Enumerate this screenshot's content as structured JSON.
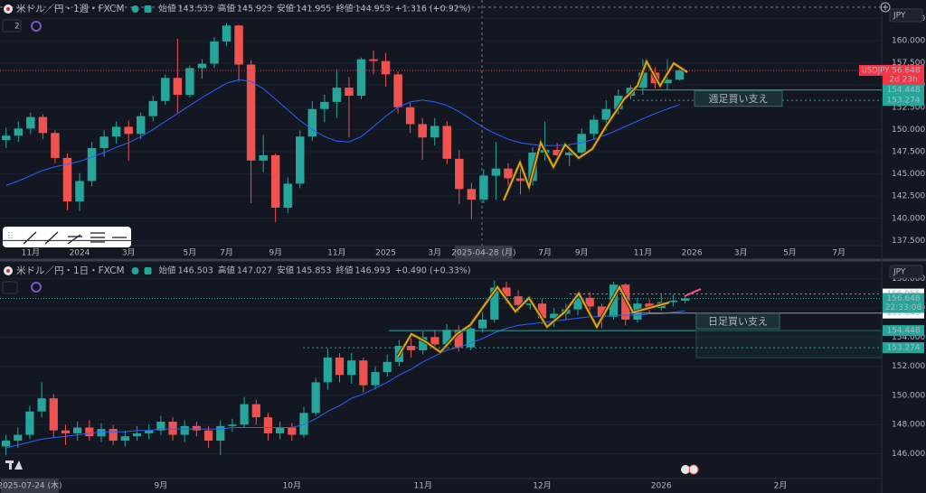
{
  "chart_data": [
    {
      "type": "candlestick",
      "title": "米ドル／円・1週・FXCM",
      "badge": 2,
      "currency": "JPY",
      "header": {
        "open_label": "始値",
        "open": 143.533,
        "high_label": "高値",
        "high": 145.923,
        "low_label": "安値",
        "low": 141.955,
        "close_label": "終値",
        "close": 144.953,
        "change": "+1.316 (+0.92%)"
      },
      "up_color": "#26a69a",
      "down_color": "#ef5350",
      "ma_color": "#2962ff",
      "grid": true,
      "ylim": [
        136.93,
        164.57
      ],
      "yticks": [
        {
          "value": 137.5,
          "label": "137.500"
        },
        {
          "value": 140,
          "label": "140.000"
        },
        {
          "value": 142.5,
          "label": "142.500"
        },
        {
          "value": 145,
          "label": "145.000"
        },
        {
          "value": 147.5,
          "label": "147.500"
        },
        {
          "value": 150,
          "label": "150.000"
        },
        {
          "value": 152.5,
          "label": "152.500"
        },
        {
          "value": 155,
          "label": "155.000"
        },
        {
          "value": 157.5,
          "label": "157.500"
        },
        {
          "value": 160,
          "label": "160.000"
        },
        {
          "value": 162.5,
          "label": "162.500"
        }
      ],
      "categories": [
        null,
        null,
        "11月",
        null,
        null,
        null,
        "2024",
        null,
        null,
        null,
        "3月",
        null,
        null,
        null,
        null,
        "5月",
        null,
        null,
        "7月",
        null,
        null,
        null,
        "9月",
        null,
        null,
        null,
        null,
        "11月",
        null,
        null,
        null,
        "2025",
        null,
        null,
        null,
        "3月",
        null,
        null,
        null,
        "2025-04-28 (月)",
        null,
        null,
        null,
        null,
        "7月",
        null,
        null,
        "9月",
        null,
        null,
        null,
        null,
        "11月",
        null,
        null,
        null,
        "2026",
        null,
        null,
        null,
        "3月",
        null,
        null,
        null,
        "5月",
        null,
        null,
        null,
        "7月",
        null,
        null,
        null
      ],
      "open": [
        148.8,
        149.3,
        150.1,
        151.4,
        149.6,
        146.8,
        141.9,
        144.2,
        147.9,
        149.2,
        150.3,
        149.5,
        151.5,
        153.2,
        155.8,
        153.9,
        156.9,
        157.4,
        159.9,
        161.7,
        157.3,
        146.5,
        147.1,
        141.2,
        143.9,
        149.2,
        152.3,
        153.1,
        154.7,
        153.8,
        157.9,
        157.7,
        156.2,
        152.5,
        150.6,
        149.1,
        150.4,
        146.7,
        143.3,
        142.1,
        144.8,
        145.6,
        144.5,
        144.2,
        147.4,
        147.7,
        147.1,
        147.4,
        149.5,
        151.1,
        152.3,
        153.8,
        154.7,
        156.4,
        155.2,
        155.6,
        null,
        null,
        null,
        null,
        null,
        null,
        null,
        null,
        null,
        null,
        null,
        null,
        null,
        null,
        null,
        null
      ],
      "high": [
        150.2,
        150.9,
        151.9,
        151.7,
        149.9,
        147.3,
        145.1,
        148.6,
        149.9,
        150.9,
        151.0,
        151.9,
        153.8,
        156.2,
        160.2,
        157.2,
        157.9,
        160.4,
        162.0,
        161.8,
        157.8,
        149.4,
        147.3,
        144.6,
        149.9,
        153.2,
        153.9,
        156.8,
        155.9,
        158.1,
        158.9,
        158.6,
        156.5,
        153.0,
        151.3,
        151.3,
        150.9,
        147.7,
        144.0,
        145.5,
        148.6,
        146.2,
        145.9,
        148.0,
        150.9,
        148.5,
        148.3,
        150.1,
        151.6,
        153.3,
        154.5,
        155.0,
        157.9,
        157.0,
        157.9,
        157.0,
        null,
        null,
        null,
        null,
        null,
        null,
        null,
        null,
        null,
        null,
        null,
        null,
        null,
        null,
        null,
        null
      ],
      "low": [
        147.9,
        148.6,
        149.5,
        148.9,
        146.2,
        140.9,
        140.8,
        143.6,
        146.9,
        148.4,
        146.5,
        148.9,
        150.9,
        152.8,
        151.9,
        153.6,
        155.7,
        156.9,
        159.4,
        155.4,
        141.7,
        145.2,
        139.6,
        140.6,
        143.4,
        148.7,
        150.8,
        151.3,
        149.1,
        153.4,
        156.2,
        154.8,
        151.8,
        149.6,
        146.6,
        148.2,
        146.1,
        141.6,
        139.9,
        141.7,
        142.1,
        142.8,
        142.7,
        143.7,
        146.5,
        146.2,
        145.9,
        146.8,
        148.9,
        149.9,
        151.7,
        153.4,
        153.9,
        154.6,
        154.4,
        155.5,
        null,
        null,
        null,
        null,
        null,
        null,
        null,
        null,
        null,
        null,
        null,
        null,
        null,
        null,
        null,
        null
      ],
      "close": [
        149.3,
        150.1,
        151.4,
        149.6,
        146.8,
        141.9,
        144.2,
        147.9,
        149.2,
        150.3,
        149.5,
        151.5,
        153.2,
        155.8,
        153.9,
        156.9,
        157.4,
        159.9,
        161.7,
        157.3,
        146.5,
        147.1,
        141.2,
        143.9,
        149.2,
        152.3,
        153.1,
        154.7,
        153.8,
        157.9,
        157.7,
        156.2,
        152.5,
        150.6,
        149.1,
        150.4,
        146.7,
        143.3,
        142.1,
        144.8,
        145.6,
        144.5,
        144.2,
        147.4,
        147.7,
        147.1,
        147.4,
        149.5,
        151.1,
        152.3,
        153.8,
        154.7,
        156.4,
        155.2,
        155.6,
        156.65,
        null,
        null,
        null,
        null,
        null,
        null,
        null,
        null,
        null,
        null,
        null,
        null,
        null,
        null,
        null,
        null
      ],
      "ma": [
        143.7,
        144.2,
        144.8,
        145.4,
        145.8,
        146.1,
        146.4,
        146.9,
        147.4,
        148.0,
        148.5,
        149.2,
        150.0,
        150.9,
        151.8,
        152.7,
        153.6,
        154.4,
        155.2,
        155.6,
        155.4,
        154.6,
        153.4,
        152.2,
        151.0,
        150.0,
        149.2,
        148.7,
        148.6,
        149.2,
        150.3,
        151.5,
        152.5,
        153.1,
        153.3,
        153.1,
        152.7,
        152.0,
        151.1,
        150.2,
        149.5,
        148.9,
        148.5,
        148.3,
        148.2,
        148.2,
        148.3,
        148.5,
        148.9,
        149.4,
        150.0,
        150.6,
        151.2,
        151.8,
        152.3,
        152.8,
        null,
        null,
        null,
        null,
        null,
        null,
        null,
        null,
        null,
        null,
        null,
        null,
        null,
        null,
        null,
        null
      ],
      "last": {
        "value": 156.648,
        "color": "#f23645",
        "symbol": "USDJPY",
        "countdown": "2d 23h"
      },
      "levels": [
        {
          "value": 154.448,
          "color": "#26a69a",
          "style": "solid"
        },
        {
          "value": 153.274,
          "color": "#26a69a",
          "style": "dotted"
        }
      ],
      "annotation": {
        "text": "週足買い支え",
        "value": 154.448
      }
    },
    {
      "type": "candlestick",
      "title": "米ドル／円・1日・FXCM",
      "currency": "JPY",
      "header": {
        "open_label": "始値",
        "open": 146.503,
        "high_label": "高値",
        "high": 147.027,
        "low_label": "安値",
        "low": 145.853,
        "close_label": "終値",
        "close": 146.993,
        "change": "+0.490 (+0.33%)"
      },
      "up_color": "#26a69a",
      "down_color": "#ef5350",
      "ma_color": "#2962ff",
      "grid": true,
      "ylim": [
        144.3,
        158.17
      ],
      "yticks": [
        {
          "value": 146,
          "label": "146.000"
        },
        {
          "value": 148,
          "label": "148.000"
        },
        {
          "value": 150,
          "label": "150.000"
        },
        {
          "value": 152,
          "label": "152.000"
        },
        {
          "value": 154,
          "label": "154.000"
        },
        {
          "value": 156,
          "label": "156.000"
        },
        {
          "value": 158,
          "label": "158.000"
        }
      ],
      "categories": [
        null,
        null,
        "2025-07-24 (木)",
        null,
        null,
        null,
        null,
        null,
        null,
        null,
        null,
        null,
        null,
        "9月",
        null,
        null,
        null,
        null,
        null,
        null,
        null,
        null,
        null,
        null,
        "10月",
        null,
        null,
        null,
        null,
        null,
        null,
        null,
        null,
        null,
        null,
        "11月",
        null,
        null,
        null,
        null,
        null,
        null,
        null,
        null,
        null,
        "12月",
        null,
        null,
        null,
        null,
        null,
        null,
        null,
        null,
        null,
        "2026",
        null,
        null,
        null,
        null,
        null,
        null,
        null,
        null,
        null,
        "2月",
        null,
        null,
        null,
        null,
        null,
        null,
        null,
        null
      ],
      "open": [
        146.5,
        146.9,
        147.3,
        148.9,
        149.8,
        147.6,
        147.4,
        147.8,
        147.2,
        147.7,
        146.9,
        147.2,
        147.4,
        147.6,
        148.2,
        147.3,
        147.9,
        147.6,
        146.9,
        147.9,
        148.0,
        149.4,
        148.5,
        147.4,
        147.8,
        147.3,
        148.8,
        150.9,
        152.6,
        151.4,
        152.4,
        150.7,
        151.6,
        152.3,
        153.4,
        153.1,
        154.0,
        153.5,
        154.5,
        153.3,
        154.6,
        155.2,
        157.4,
        156.8,
        156.2,
        156.3,
        155.3,
        155.6,
        155.9,
        156.7,
        156.1,
        155.4,
        157.6,
        155.2,
        156.3,
        156.0,
        156.4,
        156.5,
        null,
        null,
        null,
        null,
        null,
        null,
        null,
        null,
        null,
        null,
        null,
        null,
        null,
        null,
        null,
        null
      ],
      "high": [
        147.3,
        147.8,
        149.3,
        150.9,
        150.1,
        148.0,
        148.2,
        148.3,
        148.1,
        148.0,
        147.6,
        147.9,
        148.0,
        148.6,
        148.5,
        148.3,
        148.2,
        147.9,
        148.3,
        148.4,
        149.9,
        149.7,
        148.8,
        148.2,
        148.1,
        149.2,
        151.2,
        153.2,
        152.9,
        152.9,
        152.6,
        152.0,
        152.8,
        153.8,
        153.9,
        154.4,
        154.5,
        154.9,
        154.8,
        155.0,
        155.7,
        157.9,
        157.8,
        157.2,
        156.8,
        156.6,
        156.0,
        156.3,
        157.0,
        157.1,
        156.3,
        157.8,
        157.7,
        156.7,
        156.6,
        156.9,
        156.9,
        156.8,
        null,
        null,
        null,
        null,
        null,
        null,
        null,
        null,
        null,
        null,
        null,
        null,
        null,
        null,
        null,
        null
      ],
      "low": [
        145.9,
        146.4,
        147.0,
        148.5,
        147.1,
        146.6,
        146.9,
        146.9,
        146.8,
        146.6,
        146.5,
        146.9,
        147.0,
        147.3,
        146.9,
        146.8,
        147.2,
        146.4,
        145.9,
        147.5,
        147.8,
        148.0,
        146.9,
        147.0,
        146.9,
        147.1,
        148.6,
        150.4,
        150.9,
        150.8,
        150.2,
        150.4,
        151.3,
        152.0,
        152.6,
        152.8,
        153.1,
        153.2,
        153.0,
        153.1,
        154.3,
        155.0,
        156.3,
        155.7,
        155.9,
        154.9,
        154.7,
        155.2,
        155.5,
        155.8,
        154.6,
        155.2,
        154.8,
        155.0,
        155.6,
        155.8,
        156.1,
        156.3,
        null,
        null,
        null,
        null,
        null,
        null,
        null,
        null,
        null,
        null,
        null,
        null,
        null,
        null,
        null,
        null
      ],
      "close": [
        146.9,
        147.3,
        148.9,
        149.8,
        147.6,
        147.4,
        147.8,
        147.2,
        147.7,
        146.9,
        147.2,
        147.4,
        147.6,
        148.2,
        147.3,
        147.9,
        147.6,
        146.9,
        147.9,
        148.0,
        149.4,
        148.5,
        147.4,
        147.8,
        147.3,
        148.8,
        150.9,
        152.6,
        151.4,
        152.4,
        150.7,
        151.6,
        152.3,
        153.4,
        153.1,
        154.0,
        153.5,
        154.5,
        153.3,
        154.6,
        155.2,
        157.4,
        156.8,
        156.2,
        156.3,
        155.3,
        155.6,
        155.9,
        156.7,
        156.1,
        155.4,
        157.6,
        155.2,
        156.3,
        156.0,
        156.4,
        156.5,
        156.65,
        null,
        null,
        null,
        null,
        null,
        null,
        null,
        null,
        null,
        null,
        null,
        null,
        null,
        null,
        null,
        null
      ],
      "ma": [
        146.4,
        146.6,
        146.8,
        147.0,
        147.1,
        147.2,
        147.3,
        147.4,
        147.5,
        147.5,
        147.5,
        147.6,
        147.6,
        147.7,
        147.7,
        147.7,
        147.7,
        147.7,
        147.7,
        147.8,
        147.8,
        147.8,
        147.8,
        147.8,
        147.8,
        148.0,
        148.4,
        148.9,
        149.3,
        149.8,
        150.1,
        150.5,
        150.9,
        151.4,
        151.8,
        152.3,
        152.7,
        153.1,
        153.3,
        153.6,
        153.9,
        154.3,
        154.6,
        154.8,
        154.9,
        155.0,
        155.1,
        155.2,
        155.3,
        155.4,
        155.4,
        155.5,
        155.5,
        155.5,
        155.6,
        155.6,
        155.7,
        155.8,
        null,
        null,
        null,
        null,
        null,
        null,
        null,
        null,
        null,
        null,
        null,
        null,
        null,
        null,
        null,
        null
      ],
      "last": {
        "value": 156.648,
        "color": "#26a69a",
        "countdown": "22:33:08"
      },
      "levels": [
        {
          "value": 156.955,
          "color": "#ffffff",
          "style": "dotted"
        },
        {
          "value": 155.649,
          "color": "#ffffff",
          "style": "solid"
        },
        {
          "value": 154.448,
          "color": "#26a69a",
          "style": "solid"
        },
        {
          "value": 153.274,
          "color": "#26a69a",
          "style": "dotted"
        }
      ],
      "annotation": {
        "text": "日足買い支え",
        "value": 154.448
      }
    }
  ]
}
